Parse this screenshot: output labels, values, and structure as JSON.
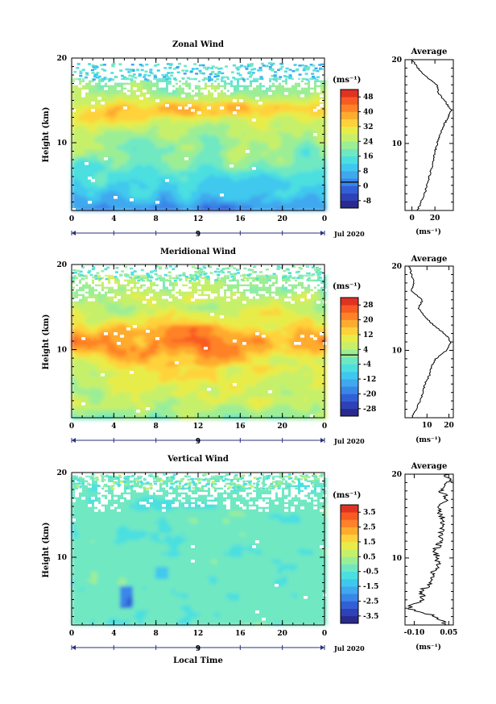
{
  "chart_data": [
    {
      "type": "heatmap",
      "title": "Zonal Wind",
      "ylabel": "Height (km)",
      "xticks": [
        "0",
        "4",
        "8",
        "12",
        "16",
        "20",
        "0"
      ],
      "yticks": [
        "10",
        "20"
      ],
      "xlim": [
        0,
        24
      ],
      "ylim": [
        2,
        20
      ],
      "day_label": "9",
      "month_label": "Jul 2020",
      "colorbar": {
        "unit": "(ms⁻¹)",
        "labels": [
          "48",
          "40",
          "32",
          "24",
          "16",
          "8",
          "0",
          "-8"
        ],
        "range": [
          -12,
          52
        ],
        "zero_value": 2,
        "colors": [
          "#2a2a8c",
          "#2e41b8",
          "#3160d6",
          "#3a86e8",
          "#3fa8ee",
          "#3fc8ee",
          "#4cdfe0",
          "#6fe8c2",
          "#9cee94",
          "#c6f06a",
          "#e8ec4a",
          "#ffd23a",
          "#ffab2e",
          "#ff8228",
          "#f85a22",
          "#e03222"
        ]
      },
      "average": {
        "title": "Average",
        "xticks": [
          "0",
          "20"
        ],
        "xtick_values": [
          0,
          20
        ],
        "xlim": [
          -6,
          36
        ],
        "xlabel": "(ms⁻¹)",
        "yticks": [
          "10",
          "20"
        ],
        "height": [
          2,
          3,
          4,
          5,
          6,
          7,
          8,
          9,
          10,
          11,
          12,
          13,
          14,
          15,
          16,
          17,
          18,
          19,
          20
        ],
        "values": [
          5,
          8,
          11,
          13,
          15,
          17,
          19,
          20,
          22,
          24,
          27,
          31,
          34,
          29,
          23,
          22,
          12,
          5,
          0
        ]
      }
    },
    {
      "type": "heatmap",
      "title": "Meridional Wind",
      "ylabel": "Height (km)",
      "xticks": [
        "0",
        "4",
        "8",
        "12",
        "16",
        "20",
        "0"
      ],
      "yticks": [
        "10",
        "20"
      ],
      "xlim": [
        0,
        24
      ],
      "ylim": [
        2,
        20
      ],
      "day_label": "9",
      "month_label": "Jul 2020",
      "colorbar": {
        "unit": "(ms⁻¹)",
        "labels": [
          "28",
          "20",
          "12",
          "4",
          "-4",
          "-12",
          "-20",
          "-28"
        ],
        "range": [
          -30,
          32
        ],
        "zero_value": 2,
        "colors": [
          "#2a2a8c",
          "#2e41b8",
          "#3160d6",
          "#3a86e8",
          "#3fa8ee",
          "#3fc8ee",
          "#4cdfe0",
          "#6fe8c2",
          "#9cee94",
          "#c6f06a",
          "#e8ec4a",
          "#ffd23a",
          "#ffab2e",
          "#ff8228",
          "#f85a22",
          "#e03222"
        ]
      },
      "average": {
        "title": "Average",
        "xticks": [
          "10",
          "20"
        ],
        "xtick_values": [
          10,
          20
        ],
        "xlim": [
          0,
          22
        ],
        "xlabel": "(ms⁻¹)",
        "yticks": [
          "10",
          "20"
        ],
        "height": [
          2,
          3,
          4,
          5,
          6,
          7,
          8,
          9,
          10,
          11,
          12,
          13,
          14,
          15,
          16,
          17,
          18,
          19,
          20
        ],
        "values": [
          3,
          5,
          7,
          8,
          9,
          11,
          12,
          14,
          19,
          21,
          18,
          13,
          9,
          6,
          8,
          3,
          4,
          3,
          2
        ]
      }
    },
    {
      "type": "heatmap",
      "title": "Vertical Wind",
      "ylabel": "Height (km)",
      "xlabel": "Local Time",
      "xticks": [
        "0",
        "4",
        "8",
        "12",
        "16",
        "20",
        "0"
      ],
      "yticks": [
        "10",
        "20"
      ],
      "xlim": [
        0,
        24
      ],
      "ylim": [
        2,
        20
      ],
      "day_label": "9",
      "month_label": "Jul 2020",
      "colorbar": {
        "unit": "(ms⁻¹)",
        "labels": [
          "3.5",
          "2.5",
          "1.5",
          "0.5",
          "-0.5",
          "-1.5",
          "-2.5",
          "-3.5"
        ],
        "range": [
          -4,
          4
        ],
        "colors": [
          "#2a2a8c",
          "#2e41b8",
          "#3160d6",
          "#3a86e8",
          "#3fa8ee",
          "#3fc8ee",
          "#4cdfe0",
          "#6fe8c2",
          "#9cee94",
          "#c6f06a",
          "#e8ec4a",
          "#ffd23a",
          "#ffab2e",
          "#ff8228",
          "#f85a22",
          "#e03222"
        ]
      },
      "average": {
        "title": "Average",
        "xticks": [
          "-0.10",
          "0.05"
        ],
        "xtick_values": [
          -0.1,
          0.05
        ],
        "xlim": [
          -0.14,
          0.07
        ],
        "xlabel": "(ms⁻¹)",
        "yticks": [
          "10",
          "20"
        ],
        "height": [
          2,
          3,
          4,
          5,
          6,
          7,
          8,
          9,
          10,
          11,
          12,
          13,
          14,
          15,
          16,
          17,
          18,
          19,
          20
        ],
        "values": [
          0.04,
          0.0,
          -0.13,
          -0.06,
          -0.07,
          -0.03,
          -0.02,
          0.0,
          0.0,
          -0.01,
          0.02,
          0.01,
          0.03,
          0.02,
          0.0,
          0.04,
          0.02,
          0.05,
          0.04
        ]
      }
    }
  ]
}
